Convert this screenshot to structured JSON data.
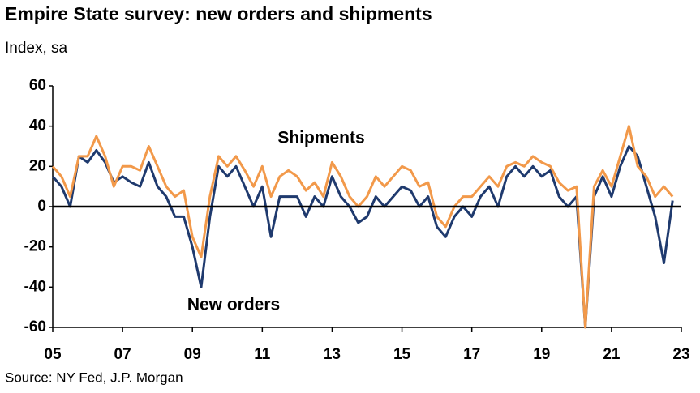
{
  "chart_data": {
    "type": "line",
    "title": "Empire State survey: new orders and shipments",
    "subtitle": "Index, sa",
    "source": "Source: NY Fed, J.P. Morgan",
    "annotations": [
      "Shipments",
      "New orders"
    ],
    "x": [
      2005.0,
      2005.25,
      2005.5,
      2005.75,
      2006.0,
      2006.25,
      2006.5,
      2006.75,
      2007.0,
      2007.25,
      2007.5,
      2007.75,
      2008.0,
      2008.25,
      2008.5,
      2008.75,
      2009.0,
      2009.25,
      2009.5,
      2009.75,
      2010.0,
      2010.25,
      2010.5,
      2010.75,
      2011.0,
      2011.25,
      2011.5,
      2011.75,
      2012.0,
      2012.25,
      2012.5,
      2012.75,
      2013.0,
      2013.25,
      2013.5,
      2013.75,
      2014.0,
      2014.25,
      2014.5,
      2014.75,
      2015.0,
      2015.25,
      2015.5,
      2015.75,
      2016.0,
      2016.25,
      2016.5,
      2016.75,
      2017.0,
      2017.25,
      2017.5,
      2017.75,
      2018.0,
      2018.25,
      2018.5,
      2018.75,
      2019.0,
      2019.25,
      2019.5,
      2019.75,
      2020.0,
      2020.25,
      2020.5,
      2020.75,
      2021.0,
      2021.25,
      2021.5,
      2021.75,
      2022.0,
      2022.25,
      2022.5,
      2022.75
    ],
    "series": [
      {
        "name": "New orders",
        "color": "#1f3a6e",
        "values": [
          15,
          10,
          0,
          25,
          22,
          28,
          22,
          12,
          15,
          12,
          10,
          22,
          10,
          5,
          -5,
          -5,
          -20,
          -40,
          -5,
          20,
          15,
          20,
          10,
          0,
          10,
          -15,
          5,
          5,
          5,
          -5,
          5,
          0,
          15,
          5,
          0,
          -8,
          -5,
          5,
          0,
          5,
          10,
          8,
          0,
          5,
          -10,
          -15,
          -5,
          0,
          -5,
          5,
          10,
          0,
          15,
          20,
          15,
          20,
          15,
          18,
          5,
          0,
          5,
          -60,
          5,
          15,
          5,
          20,
          30,
          25,
          10,
          -5,
          -28,
          3
        ]
      },
      {
        "name": "Shipments",
        "color": "#f2994a",
        "values": [
          20,
          15,
          5,
          25,
          25,
          35,
          25,
          10,
          20,
          20,
          18,
          30,
          20,
          10,
          5,
          8,
          -15,
          -25,
          5,
          25,
          20,
          25,
          18,
          10,
          20,
          5,
          15,
          18,
          15,
          8,
          12,
          5,
          22,
          15,
          5,
          0,
          5,
          15,
          10,
          15,
          20,
          18,
          10,
          12,
          -5,
          -10,
          0,
          5,
          5,
          10,
          15,
          10,
          20,
          22,
          20,
          25,
          22,
          20,
          12,
          8,
          10,
          -60,
          10,
          18,
          10,
          25,
          40,
          20,
          15,
          5,
          10,
          5
        ]
      }
    ],
    "xlim": [
      2005,
      2023
    ],
    "xticks": [
      {
        "value": 2005,
        "label": "05"
      },
      {
        "value": 2007,
        "label": "07"
      },
      {
        "value": 2009,
        "label": "09"
      },
      {
        "value": 2011,
        "label": "11"
      },
      {
        "value": 2013,
        "label": "13"
      },
      {
        "value": 2015,
        "label": "15"
      },
      {
        "value": 2017,
        "label": "17"
      },
      {
        "value": 2019,
        "label": "19"
      },
      {
        "value": 2021,
        "label": "21"
      },
      {
        "value": 2023,
        "label": "23"
      }
    ],
    "ylim": [
      -60,
      60
    ],
    "yticks": [
      -60,
      -40,
      -20,
      0,
      20,
      40,
      60
    ]
  }
}
